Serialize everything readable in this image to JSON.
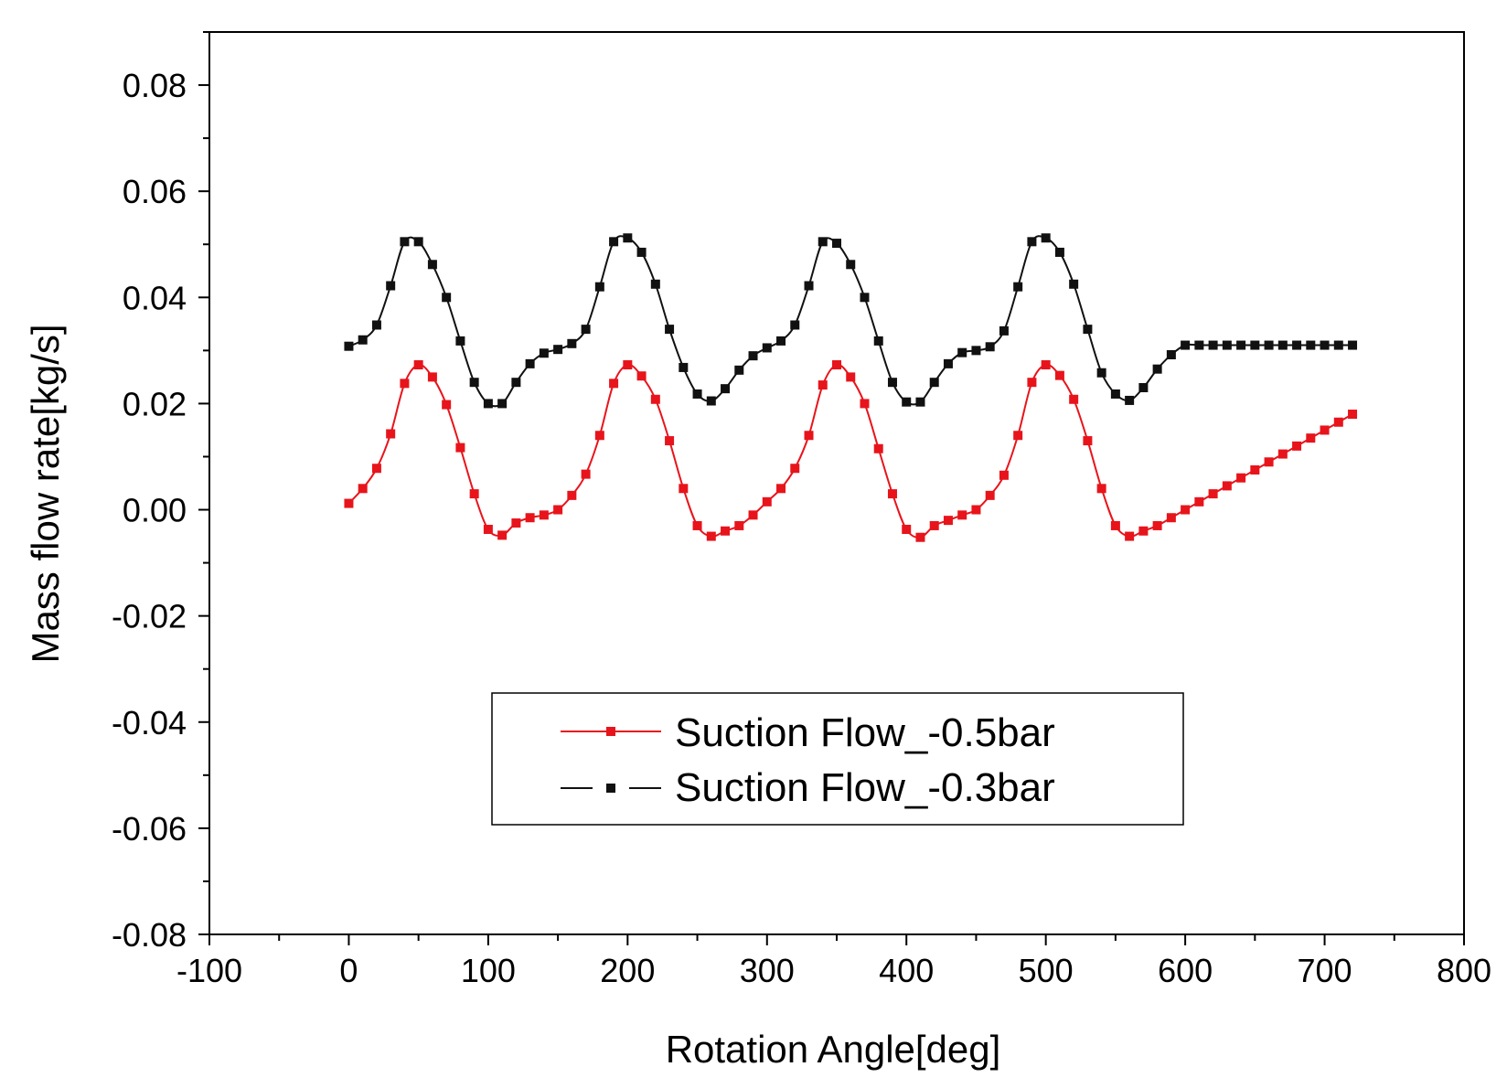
{
  "chart_data": {
    "type": "line",
    "title": "",
    "xlabel": "Rotation Angle[deg]",
    "ylabel": "Mass flow rate[kg/s]",
    "xlim": [
      -100,
      800
    ],
    "ylim": [
      -0.08,
      0.09
    ],
    "xticks": [
      -100,
      0,
      100,
      200,
      300,
      400,
      500,
      600,
      700,
      800
    ],
    "xtick_labels": [
      "-100",
      "0",
      "100",
      "200",
      "300",
      "400",
      "500",
      "600",
      "700",
      "800"
    ],
    "yticks": [
      -0.08,
      -0.06,
      -0.04,
      -0.02,
      0.0,
      0.02,
      0.04,
      0.06,
      0.08
    ],
    "ytick_labels": [
      "-0.08",
      "-0.06",
      "-0.04",
      "-0.02",
      "0.00",
      "0.02",
      "0.04",
      "0.06",
      "0.08"
    ],
    "legend_position": "bottom-center",
    "x": [
      0,
      10,
      20,
      30,
      40,
      50,
      60,
      70,
      80,
      90,
      100,
      110,
      120,
      130,
      140,
      150,
      160,
      170,
      180,
      190,
      200,
      210,
      220,
      230,
      240,
      250,
      260,
      270,
      280,
      290,
      300,
      310,
      320,
      330,
      340,
      350,
      360,
      370,
      380,
      390,
      400,
      410,
      420,
      430,
      440,
      450,
      460,
      470,
      480,
      490,
      500,
      510,
      520,
      530,
      540,
      550,
      560,
      570,
      580,
      590,
      600,
      610,
      620,
      630,
      640,
      650,
      660,
      670,
      680,
      690,
      700,
      710,
      720
    ],
    "series": [
      {
        "name": "Suction Flow_-0.5bar",
        "color": "#e8141b",
        "line_style": "solid",
        "values": [
          0.0012,
          0.004,
          0.0078,
          0.0143,
          0.0238,
          0.0273,
          0.025,
          0.0198,
          0.0117,
          0.003,
          -0.0037,
          -0.0048,
          -0.0025,
          -0.0015,
          -0.001,
          0.0,
          0.0027,
          0.0067,
          0.014,
          0.0238,
          0.0273,
          0.0252,
          0.0208,
          0.013,
          0.004,
          -0.003,
          -0.005,
          -0.004,
          -0.003,
          -0.001,
          0.0015,
          0.004,
          0.0078,
          0.014,
          0.0235,
          0.0273,
          0.025,
          0.02,
          0.0115,
          0.003,
          -0.0037,
          -0.0052,
          -0.003,
          -0.002,
          -0.001,
          0.0,
          0.0027,
          0.0065,
          0.014,
          0.024,
          0.0273,
          0.0253,
          0.0208,
          0.013,
          0.004,
          -0.003,
          -0.005,
          -0.004,
          -0.003,
          -0.0015,
          0.0,
          0.0015,
          0.003,
          0.0045,
          0.006,
          0.0075,
          0.009,
          0.0105,
          0.012,
          0.0135,
          0.015,
          0.0165,
          0.018
        ]
      },
      {
        "name": "Suction Flow_-0.3bar",
        "color": "#111111",
        "line_style": "solid",
        "values": [
          0.0308,
          0.032,
          0.0348,
          0.0422,
          0.0505,
          0.0505,
          0.0462,
          0.04,
          0.0318,
          0.024,
          0.02,
          0.02,
          0.024,
          0.0275,
          0.0295,
          0.0302,
          0.0313,
          0.034,
          0.042,
          0.0505,
          0.0512,
          0.0485,
          0.0425,
          0.034,
          0.0268,
          0.0218,
          0.0205,
          0.0228,
          0.0263,
          0.029,
          0.0305,
          0.0318,
          0.0348,
          0.0422,
          0.0505,
          0.0502,
          0.0462,
          0.04,
          0.0318,
          0.024,
          0.0203,
          0.0203,
          0.024,
          0.0275,
          0.0296,
          0.03,
          0.0307,
          0.0337,
          0.042,
          0.0505,
          0.0512,
          0.0485,
          0.0425,
          0.034,
          0.0258,
          0.0218,
          0.0206,
          0.023,
          0.0265,
          0.0292,
          0.031,
          0.031,
          0.031,
          0.031,
          0.031,
          0.031,
          0.031,
          0.031,
          0.031,
          0.031,
          0.031,
          0.031,
          0.031
        ]
      }
    ]
  }
}
